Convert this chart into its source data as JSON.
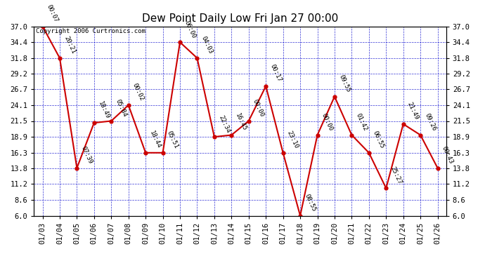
{
  "title": "Dew Point Daily Low Fri Jan 27 00:00",
  "copyright": "Copyright 2006 Curtronics.com",
  "x_labels": [
    "01/03",
    "01/04",
    "01/05",
    "01/06",
    "01/07",
    "01/08",
    "01/09",
    "01/10",
    "01/11",
    "01/12",
    "01/13",
    "01/14",
    "01/15",
    "01/16",
    "01/17",
    "01/18",
    "01/19",
    "01/20",
    "01/21",
    "01/22",
    "01/23",
    "01/24",
    "01/25",
    "01/26"
  ],
  "x_values": [
    0,
    1,
    2,
    3,
    4,
    5,
    6,
    7,
    8,
    9,
    10,
    11,
    12,
    13,
    14,
    15,
    16,
    17,
    18,
    19,
    20,
    21,
    22,
    23
  ],
  "y_values": [
    37.0,
    31.8,
    13.8,
    21.2,
    21.5,
    24.1,
    16.3,
    16.3,
    34.4,
    31.8,
    18.9,
    19.2,
    21.5,
    27.2,
    16.3,
    6.0,
    19.2,
    25.5,
    19.2,
    16.3,
    10.5,
    21.0,
    19.2,
    13.8
  ],
  "point_labels": [
    "00:07",
    "20:21",
    "07:39",
    "18:49",
    "05:84",
    "00:02",
    "18:44",
    "05:51",
    "06:00",
    "04:03",
    "22:34",
    "16:45",
    "00:00",
    "00:17",
    "23:10",
    "08:55",
    "00:00",
    "09:55",
    "01:42",
    "06:55",
    "25:27",
    "21:49",
    "09:26",
    "00:43"
  ],
  "y_ticks": [
    6.0,
    8.6,
    11.2,
    13.8,
    16.3,
    18.9,
    21.5,
    24.1,
    26.7,
    29.2,
    31.8,
    34.4,
    37.0
  ],
  "ylim": [
    6.0,
    37.0
  ],
  "line_color": "#cc0000",
  "marker_color": "#cc0000",
  "grid_color": "#0000cc",
  "background_color": "#ffffff",
  "title_fontsize": 11,
  "label_fontsize": 7.5,
  "annot_fontsize": 6.5
}
